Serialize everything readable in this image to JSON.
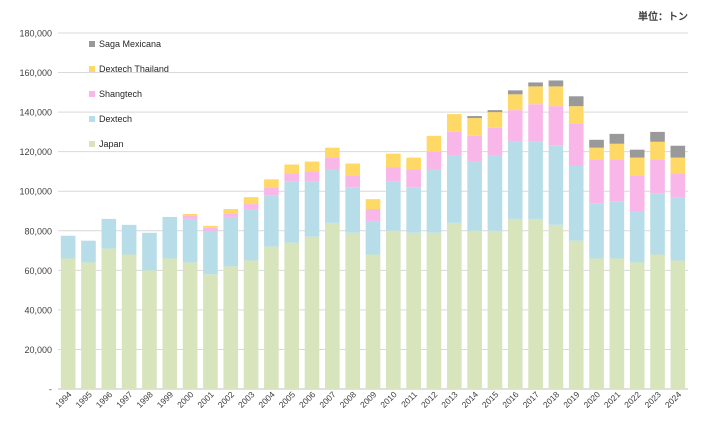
{
  "unit_label": "単位：トン",
  "chart_data": {
    "type": "stacked-bar",
    "title": "",
    "xlabel": "",
    "ylabel": "",
    "ylim": [
      0,
      180000
    ],
    "y_ticks": [
      0,
      20000,
      40000,
      60000,
      80000,
      100000,
      120000,
      140000,
      160000,
      180000
    ],
    "y_tick_labels": [
      "-",
      "20,000",
      "40,000",
      "60,000",
      "80,000",
      "100,000",
      "120,000",
      "140,000",
      "160,000",
      "180,000"
    ],
    "grid": true,
    "legend_position": "top-left",
    "categories": [
      "1994",
      "1995",
      "1996",
      "1997",
      "1998",
      "1999",
      "2000",
      "2001",
      "2002",
      "2003",
      "2004",
      "2005",
      "2006",
      "2007",
      "2008",
      "2009",
      "2010",
      "2011",
      "2012",
      "2013",
      "2014",
      "2015",
      "2016",
      "2017",
      "2018",
      "2019",
      "2020",
      "2021",
      "2022",
      "2023",
      "2024"
    ],
    "series": [
      {
        "name": "Japan",
        "color": "#d7e4bc",
        "values": [
          66000,
          64000,
          71000,
          68000,
          60000,
          66000,
          64000,
          58000,
          62000,
          65000,
          72000,
          74000,
          77000,
          84000,
          79000,
          68000,
          80000,
          79000,
          79000,
          84000,
          80000,
          80000,
          86000,
          86000,
          83000,
          75000,
          66000,
          66000,
          64000,
          68000,
          65000
        ]
      },
      {
        "name": "Dextech",
        "color": "#b7dee8",
        "values": [
          11500,
          11000,
          15000,
          15000,
          19000,
          21000,
          22000,
          22000,
          25000,
          26000,
          26000,
          31000,
          28000,
          27000,
          23000,
          17000,
          25000,
          23000,
          32000,
          34000,
          35000,
          38000,
          39000,
          39000,
          40000,
          38000,
          28000,
          29000,
          26000,
          31000,
          32000
        ]
      },
      {
        "name": "Shangtech",
        "color": "#f8b6e9",
        "values": [
          0,
          0,
          0,
          0,
          0,
          0,
          1500,
          1500,
          1500,
          2500,
          4000,
          4000,
          5000,
          6000,
          6000,
          6000,
          7000,
          9000,
          9000,
          12000,
          13000,
          14000,
          16000,
          19000,
          20000,
          21000,
          22000,
          21000,
          18000,
          17000,
          12000
        ]
      },
      {
        "name": "Dextech Thailand",
        "color": "#ffd966",
        "values": [
          0,
          0,
          0,
          0,
          0,
          0,
          1000,
          1000,
          2500,
          3500,
          4000,
          4500,
          5000,
          5000,
          6000,
          5000,
          7000,
          6000,
          8000,
          9000,
          9000,
          8000,
          8000,
          9000,
          10000,
          9000,
          6000,
          8000,
          9000,
          9000,
          8000
        ]
      },
      {
        "name": "Saga Mexicana",
        "color": "#999999",
        "values": [
          0,
          0,
          0,
          0,
          0,
          0,
          0,
          0,
          0,
          0,
          0,
          0,
          0,
          0,
          0,
          0,
          0,
          0,
          0,
          0,
          1000,
          1000,
          2000,
          2000,
          3000,
          5000,
          4000,
          5000,
          4000,
          5000,
          6000
        ]
      }
    ]
  }
}
